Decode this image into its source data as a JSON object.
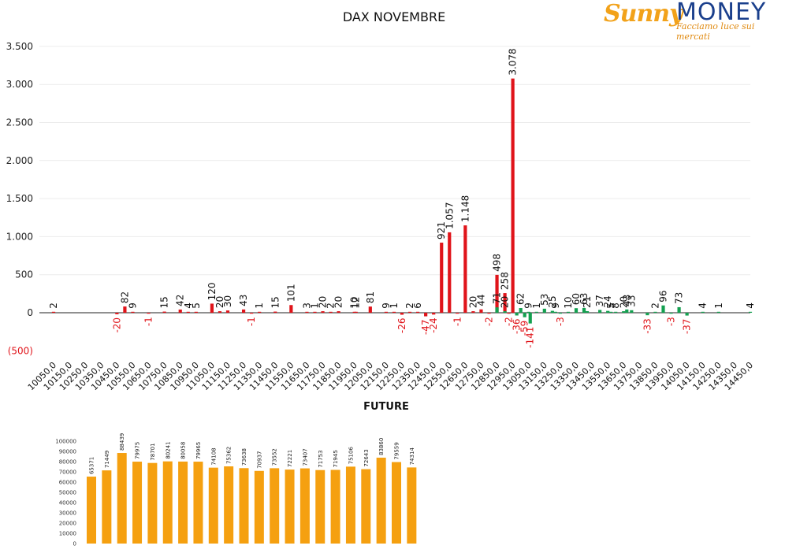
{
  "chart_data": [
    {
      "type": "bar",
      "title": "DAX NOVEMBRE",
      "xlabel": "",
      "ylabel": "",
      "ylim": [
        -500,
        3500
      ],
      "yticks": [
        {
          "value": 3500,
          "label": "3.500"
        },
        {
          "value": 3000,
          "label": "3.000"
        },
        {
          "value": 2500,
          "label": "2.500"
        },
        {
          "value": 2000,
          "label": "2.000"
        },
        {
          "value": 1500,
          "label": "1.500"
        },
        {
          "value": 1000,
          "label": "1.000"
        },
        {
          "value": 500,
          "label": "500"
        },
        {
          "value": 0,
          "label": "0"
        },
        {
          "value": -500,
          "label": "(500)"
        }
      ],
      "grid": true,
      "categories": [
        "10050,0",
        "10150,0",
        "10250,0",
        "10350,0",
        "10450,0",
        "10550,0",
        "10650,0",
        "10750,0",
        "10850,0",
        "10950,0",
        "11050,0",
        "11150,0",
        "11250,0",
        "11350,0",
        "11450,0",
        "11550,0",
        "11650,0",
        "11750,0",
        "11850,0",
        "11950,0",
        "12050,0",
        "12150,0",
        "12250,0",
        "12350,0",
        "12450,0",
        "12550,0",
        "12650,0",
        "12750,0",
        "12850,0",
        "12950,0",
        "13050,0",
        "13150,0",
        "13250,0",
        "13350,0",
        "13450,0",
        "13550,0",
        "13650,0",
        "13750,0",
        "13850,0",
        "13950,0",
        "14050,0",
        "14150,0",
        "14250,0",
        "14350,0",
        "14450,0"
      ],
      "series": [
        {
          "color": "#e0141a",
          "bars": [
            {
              "x": 10050,
              "value": 2,
              "label": "2"
            },
            {
              "x": 10450,
              "value": -20,
              "label": "-20"
            },
            {
              "x": 10500,
              "value": 82,
              "label": "82"
            },
            {
              "x": 10550,
              "value": 9,
              "label": "9"
            },
            {
              "x": 10650,
              "value": -1,
              "label": "-1"
            },
            {
              "x": 10750,
              "value": 15,
              "label": "15"
            },
            {
              "x": 10850,
              "value": 42,
              "label": "42"
            },
            {
              "x": 10900,
              "value": 4,
              "label": "4"
            },
            {
              "x": 10950,
              "value": 5,
              "label": "5"
            },
            {
              "x": 11050,
              "value": 120,
              "label": "120"
            },
            {
              "x": 11100,
              "value": 20,
              "label": "20"
            },
            {
              "x": 11150,
              "value": 30,
              "label": "30"
            },
            {
              "x": 11250,
              "value": 43,
              "label": "43"
            },
            {
              "x": 11300,
              "value": -1,
              "label": "-1"
            },
            {
              "x": 11350,
              "value": 1,
              "label": "1"
            },
            {
              "x": 11450,
              "value": 15,
              "label": "15"
            },
            {
              "x": 11550,
              "value": 101,
              "label": "101"
            },
            {
              "x": 11650,
              "value": 3,
              "label": "3"
            },
            {
              "x": 11700,
              "value": 1,
              "label": "1"
            },
            {
              "x": 11750,
              "value": 20,
              "label": "20"
            },
            {
              "x": 11800,
              "value": 2,
              "label": "2"
            },
            {
              "x": 11850,
              "value": 20,
              "label": "20"
            },
            {
              "x": 11950,
              "value": 10,
              "label": "10"
            },
            {
              "x": 11960,
              "value": 12,
              "label": "12"
            },
            {
              "x": 12050,
              "value": 81,
              "label": "81"
            },
            {
              "x": 12150,
              "value": 9,
              "label": "9"
            },
            {
              "x": 12200,
              "value": 1,
              "label": "1"
            },
            {
              "x": 12250,
              "value": -26,
              "label": "-26"
            },
            {
              "x": 12300,
              "value": 2,
              "label": "2"
            },
            {
              "x": 12350,
              "value": 6,
              "label": "6"
            },
            {
              "x": 12400,
              "value": -47,
              "label": "-47"
            },
            {
              "x": 12450,
              "value": -24,
              "label": "-24"
            },
            {
              "x": 12500,
              "value": 921,
              "label": "921"
            },
            {
              "x": 12550,
              "value": 1057,
              "label": "1.057"
            },
            {
              "x": 12600,
              "value": -1,
              "label": "-1"
            },
            {
              "x": 12650,
              "value": 1148,
              "label": "1.148"
            },
            {
              "x": 12700,
              "value": 20,
              "label": "20"
            },
            {
              "x": 12750,
              "value": 44,
              "label": "44"
            },
            {
              "x": 12800,
              "value": -2,
              "label": "-2"
            },
            {
              "x": 12850,
              "value": 498,
              "label": "498"
            },
            {
              "x": 12900,
              "value": 258,
              "label": "258"
            },
            {
              "x": 12925,
              "value": -2,
              "label": "-2"
            },
            {
              "x": 12950,
              "value": 3078,
              "label": "3.078"
            }
          ]
        },
        {
          "color": "#14a050",
          "bars": [
            {
              "x": 12850,
              "value": 71,
              "label": "71"
            },
            {
              "x": 12900,
              "value": 20,
              "label": "20"
            },
            {
              "x": 12975,
              "value": -36,
              "label": "-36"
            },
            {
              "x": 13000,
              "value": 62,
              "label": "62"
            },
            {
              "x": 13025,
              "value": -59,
              "label": "-59"
            },
            {
              "x": 13050,
              "value": 9,
              "label": "9"
            },
            {
              "x": 13060,
              "value": -141,
              "label": "-141"
            },
            {
              "x": 13100,
              "value": 1,
              "label": "1"
            },
            {
              "x": 13150,
              "value": 53,
              "label": "53"
            },
            {
              "x": 13200,
              "value": 25,
              "label": "25"
            },
            {
              "x": 13220,
              "value": 9,
              "label": "9"
            },
            {
              "x": 13250,
              "value": -3,
              "label": "-3"
            },
            {
              "x": 13300,
              "value": 10,
              "label": "10"
            },
            {
              "x": 13350,
              "value": 60,
              "label": "60"
            },
            {
              "x": 13400,
              "value": 63,
              "label": "63"
            },
            {
              "x": 13420,
              "value": 21,
              "label": "21"
            },
            {
              "x": 13500,
              "value": 37,
              "label": "37"
            },
            {
              "x": 13550,
              "value": 24,
              "label": "24"
            },
            {
              "x": 13570,
              "value": 5,
              "label": "5"
            },
            {
              "x": 13600,
              "value": 8,
              "label": "8"
            },
            {
              "x": 13650,
              "value": 20,
              "label": "20"
            },
            {
              "x": 13670,
              "value": 43,
              "label": "43"
            },
            {
              "x": 13700,
              "value": 33,
              "label": "33"
            },
            {
              "x": 13800,
              "value": -33,
              "label": "-33"
            },
            {
              "x": 13850,
              "value": 2,
              "label": "2"
            },
            {
              "x": 13900,
              "value": 96,
              "label": "96"
            },
            {
              "x": 13950,
              "value": -3,
              "label": "-3"
            },
            {
              "x": 14000,
              "value": 73,
              "label": "73"
            },
            {
              "x": 14050,
              "value": -37,
              "label": "-37"
            },
            {
              "x": 14150,
              "value": 4,
              "label": "4"
            },
            {
              "x": 14250,
              "value": 1,
              "label": "1"
            },
            {
              "x": 14450,
              "value": 4,
              "label": "4"
            }
          ]
        }
      ]
    },
    {
      "type": "bar",
      "title": "FUTURE",
      "xlabel": "",
      "ylabel": "",
      "ylim": [
        0,
        100000
      ],
      "yticks": [
        0,
        10000,
        20000,
        30000,
        40000,
        50000,
        60000,
        70000,
        80000,
        90000,
        100000
      ],
      "grid": false,
      "color": "#f5a010",
      "values": [
        65371,
        71449,
        88439,
        79975,
        78701,
        80241,
        80058,
        79965,
        74108,
        75362,
        73638,
        70937,
        73552,
        72221,
        73407,
        71753,
        71945,
        75106,
        72643,
        83860,
        79559,
        74314
      ]
    }
  ],
  "logo": {
    "brand_part1": "Sunny",
    "brand_part2": "MONEY",
    "tagline": "Facciamo luce sui mercati"
  }
}
